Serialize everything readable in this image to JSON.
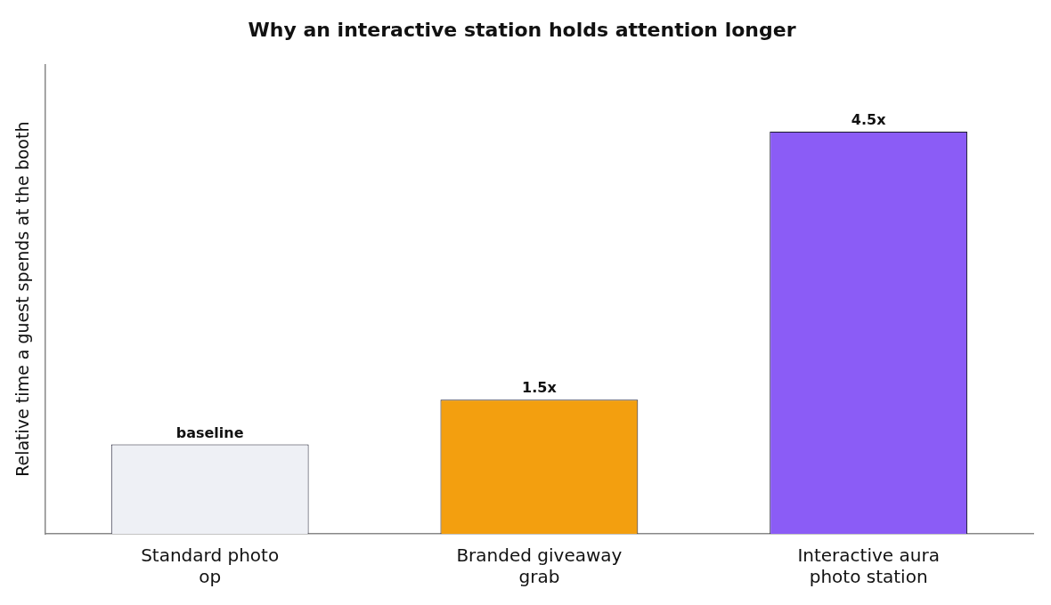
{
  "chart_data": {
    "type": "bar",
    "title": "Why an interactive station holds attention longer",
    "ylabel": "Relative time a guest spends at the booth",
    "categories": [
      "Standard photo op",
      "Branded giveaway grab",
      "Interactive aura photo station"
    ],
    "values": [
      1,
      1.5,
      4.5
    ],
    "value_labels": [
      "baseline",
      "1.5x",
      "4.5x"
    ],
    "colors": [
      "#eef0f5",
      "#f39f0f",
      "#8b5cf6"
    ],
    "grid": false,
    "legend": false
  }
}
